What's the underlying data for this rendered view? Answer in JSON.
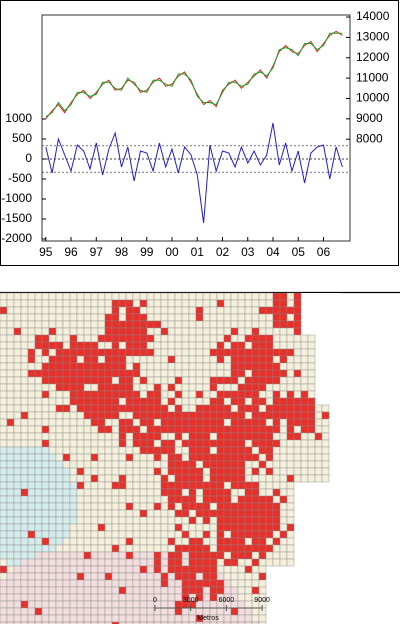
{
  "chart_data": {
    "type": "line",
    "x": [
      1995,
      1995.25,
      1995.5,
      1995.75,
      1996,
      1996.25,
      1996.5,
      1996.75,
      1997,
      1997.25,
      1997.5,
      1997.75,
      1998,
      1998.25,
      1998.5,
      1998.75,
      1999,
      1999.25,
      1999.5,
      1999.75,
      2000,
      2000.25,
      2000.5,
      2000.75,
      2001,
      2001.25,
      2001.5,
      2001.75,
      2002,
      2002.25,
      2002.5,
      2002.75,
      2003,
      2003.25,
      2003.5,
      2003.75,
      2004,
      2004.25,
      2004.5,
      2004.75,
      2005,
      2005.25,
      2005.5,
      2005.75,
      2006,
      2006.25,
      2006.5,
      2006.75
    ],
    "series": [
      {
        "color": "#e0281c",
        "axis": "y2",
        "values": [
          9000,
          9400,
          9700,
          9300,
          9800,
          10200,
          10400,
          10000,
          10300,
          10700,
          10900,
          10400,
          10500,
          10900,
          10800,
          10300,
          10400,
          10800,
          11000,
          10600,
          10700,
          11100,
          11300,
          10800,
          10200,
          9700,
          9900,
          9600,
          10400,
          10700,
          10900,
          10500,
          10800,
          11100,
          11400,
          11000,
          11600,
          12300,
          12600,
          12300,
          12200,
          12600,
          12800,
          12300,
          12700,
          13100,
          13300,
          13100
        ]
      },
      {
        "color": "#1aa028",
        "axis": "y2",
        "values": [
          9100,
          9300,
          9800,
          9400,
          9700,
          10300,
          10300,
          10100,
          10200,
          10800,
          10800,
          10500,
          10400,
          11000,
          10700,
          10400,
          10300,
          10900,
          10900,
          10700,
          10600,
          11200,
          11200,
          10900,
          10100,
          9800,
          9800,
          9700,
          10300,
          10800,
          10800,
          10600,
          10700,
          11200,
          11300,
          11100,
          11500,
          12400,
          12500,
          12400,
          12100,
          12700,
          12700,
          12400,
          12600,
          13200,
          13200,
          13200
        ]
      },
      {
        "color": "#1f1fd0",
        "values": [
          300,
          -350,
          500,
          100,
          -300,
          350,
          200,
          -250,
          400,
          -400,
          250,
          650,
          -200,
          300,
          -550,
          200,
          150,
          -300,
          400,
          -200,
          250,
          -350,
          300,
          100,
          -400,
          -1600,
          350,
          -300,
          200,
          150,
          -200,
          300,
          -100,
          200,
          -150,
          100,
          900,
          -150,
          400,
          -300,
          200,
          -600,
          150,
          300,
          350,
          -500,
          300,
          -200
        ]
      }
    ],
    "hlines": [
      330,
      0,
      -330
    ],
    "xlim": [
      1994.85,
      2007.05
    ],
    "xticks": [
      {
        "value": 1995,
        "label": "95"
      },
      {
        "value": 1996,
        "label": "96"
      },
      {
        "value": 1997,
        "label": "97"
      },
      {
        "value": 1998,
        "label": "98"
      },
      {
        "value": 1999,
        "label": "99"
      },
      {
        "value": 2000,
        "label": "00"
      },
      {
        "value": 2001,
        "label": "01"
      },
      {
        "value": 2002,
        "label": "02"
      },
      {
        "value": 2003,
        "label": "03"
      },
      {
        "value": 2004,
        "label": "04"
      },
      {
        "value": 2005,
        "label": "05"
      },
      {
        "value": 2006,
        "label": "06"
      }
    ],
    "ylim": [
      -2050,
      3600
    ],
    "yticks": [
      1000,
      500,
      0,
      -500,
      -1000,
      -1500,
      -2000
    ],
    "y2lim": [
      3000,
      14100
    ],
    "y2ticks": [
      14000,
      13000,
      12000,
      11000,
      10000,
      9000,
      8000
    ],
    "grid": false
  },
  "map": {
    "scale_labels": [
      "0",
      "3000",
      "6000",
      "9000"
    ],
    "scale_unit": "Metros"
  }
}
